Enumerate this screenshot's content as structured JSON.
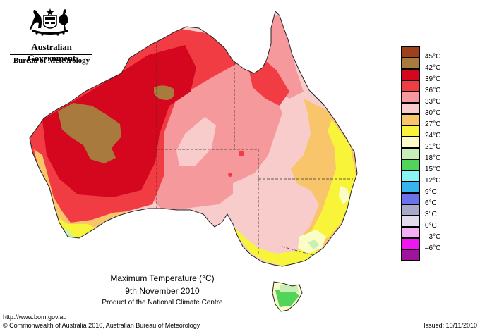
{
  "header": {
    "government": "Australian Government",
    "bureau": "Bureau of Meteorology",
    "logo_icon": "commonwealth-coat-of-arms-icon"
  },
  "map": {
    "title": "Maximum Temperature (°C)",
    "date": "9th November 2010",
    "product": "Product of the National Climate Centre",
    "region": "Australia",
    "variable": "Maximum temperature",
    "legend": [
      {
        "label": "45°C",
        "color": "#a0401a"
      },
      {
        "label": "42°C",
        "color": "#a87a3e"
      },
      {
        "label": "39°C",
        "color": "#d4071e"
      },
      {
        "label": "36°C",
        "color": "#f23c44"
      },
      {
        "label": "33°C",
        "color": "#f6999c"
      },
      {
        "label": "30°C",
        "color": "#f9cccc"
      },
      {
        "label": "27°C",
        "color": "#f8c56a"
      },
      {
        "label": "24°C",
        "color": "#f8f43a"
      },
      {
        "label": "21°C",
        "color": "#fafec6"
      },
      {
        "label": "18°C",
        "color": "#c8f0b6"
      },
      {
        "label": "15°C",
        "color": "#52d45a"
      },
      {
        "label": "12°C",
        "color": "#8af4f4"
      },
      {
        "label": "9°C",
        "color": "#38b4ec"
      },
      {
        "label": "6°C",
        "color": "#6c72ec"
      },
      {
        "label": "3°C",
        "color": "#a9a9c9"
      },
      {
        "label": "0°C",
        "color": "#e2dcec"
      },
      {
        "label": "–3°C",
        "color": "#f4aef4"
      },
      {
        "label": "–6°C",
        "color": "#f016f0"
      },
      {
        "label": "",
        "color": "#a0149c"
      }
    ]
  },
  "footer": {
    "url": "http://www.bom.gov.au",
    "copyright": "© Commonwealth of Australia 2010, Australian Bureau of Meteorology",
    "issued": "Issued: 10/11/2010"
  }
}
